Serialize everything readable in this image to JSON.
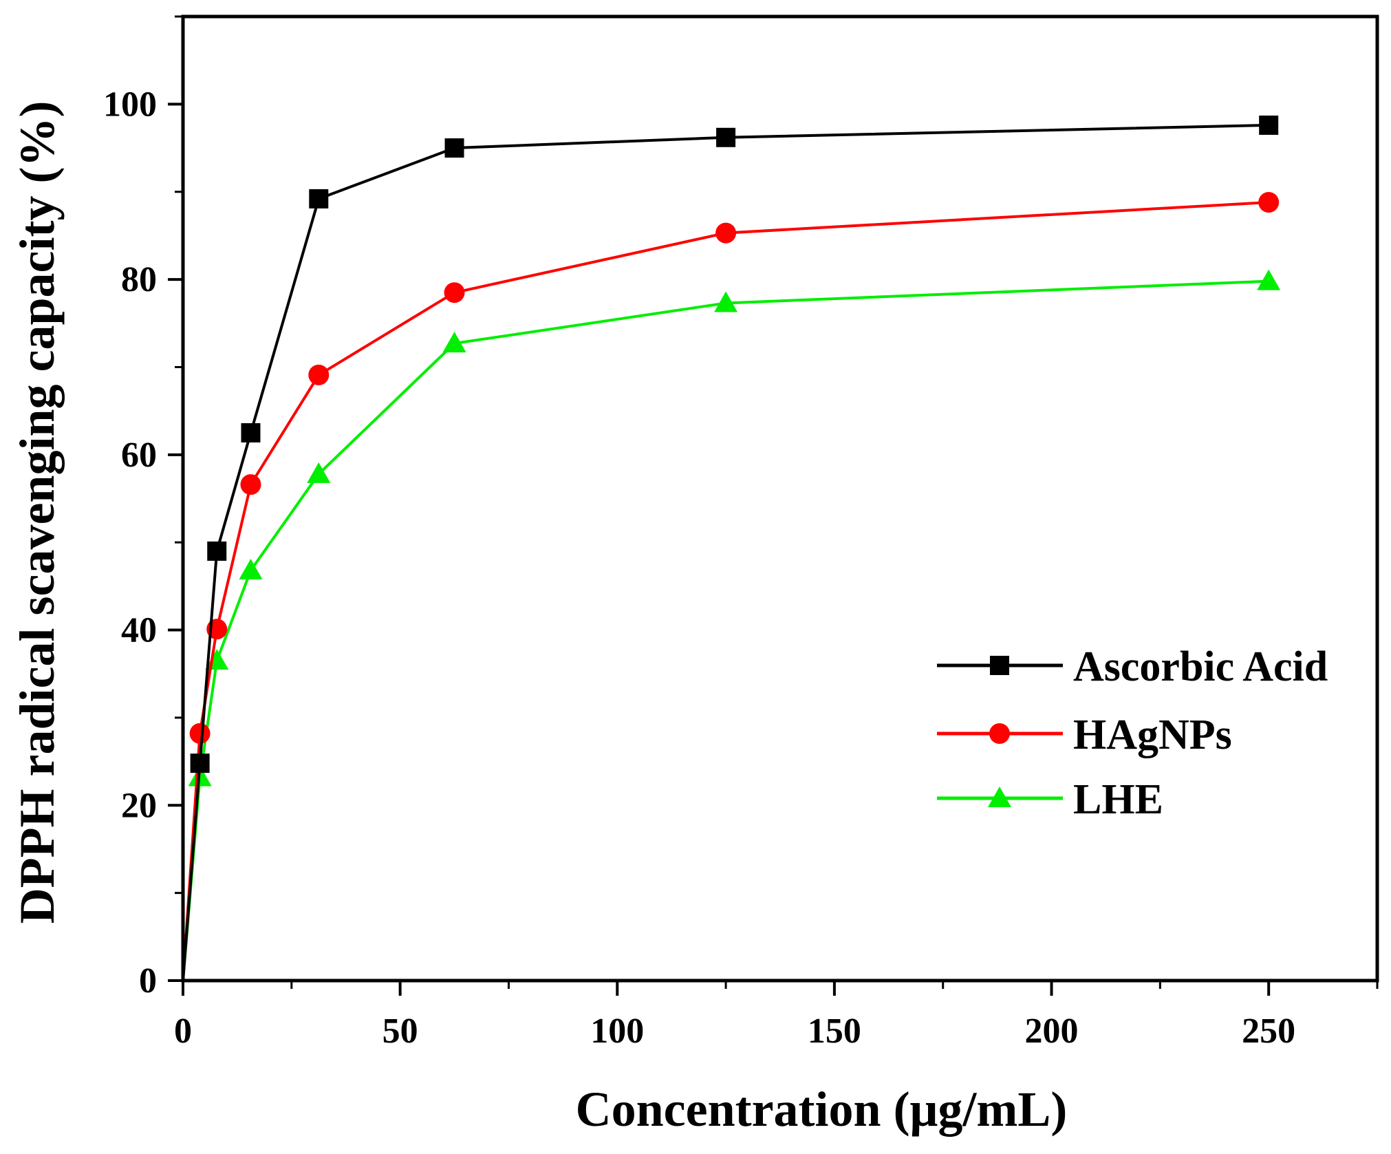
{
  "chart_data": {
    "type": "line",
    "title": "",
    "xlabel": "Concentration (μg/mL)",
    "ylabel": "DPPH radical scavenging capacity (%)",
    "xlim": [
      0,
      275
    ],
    "ylim": [
      0,
      110
    ],
    "x_ticks": [
      0,
      50,
      100,
      150,
      200,
      250
    ],
    "y_ticks": [
      0,
      20,
      40,
      60,
      80,
      100
    ],
    "x_minor_ticks": [
      25,
      75,
      125,
      175,
      225,
      275
    ],
    "y_minor_ticks": [
      10,
      30,
      50,
      70,
      90,
      110
    ],
    "legend_position": "center-right",
    "series": [
      {
        "name": "Ascorbic Acid",
        "color": "#000000",
        "marker": "square",
        "x": [
          0,
          3.9,
          7.8,
          15.6,
          31.25,
          62.5,
          125,
          250
        ],
        "y": [
          0,
          24.8,
          49.0,
          62.5,
          89.2,
          95.0,
          96.2,
          97.6
        ]
      },
      {
        "name": "HAgNPs",
        "color": "#ff0000",
        "marker": "circle",
        "x": [
          0,
          3.9,
          7.8,
          15.6,
          31.25,
          62.5,
          125,
          250
        ],
        "y": [
          0,
          28.2,
          40.1,
          56.6,
          69.1,
          78.5,
          85.3,
          88.8
        ]
      },
      {
        "name": "LHE",
        "color": "#00ee00",
        "marker": "triangle",
        "x": [
          0,
          3.9,
          7.8,
          15.6,
          31.25,
          62.5,
          125,
          250
        ],
        "y": [
          0,
          23.2,
          36.5,
          46.8,
          57.8,
          72.7,
          77.3,
          79.8
        ]
      }
    ]
  }
}
